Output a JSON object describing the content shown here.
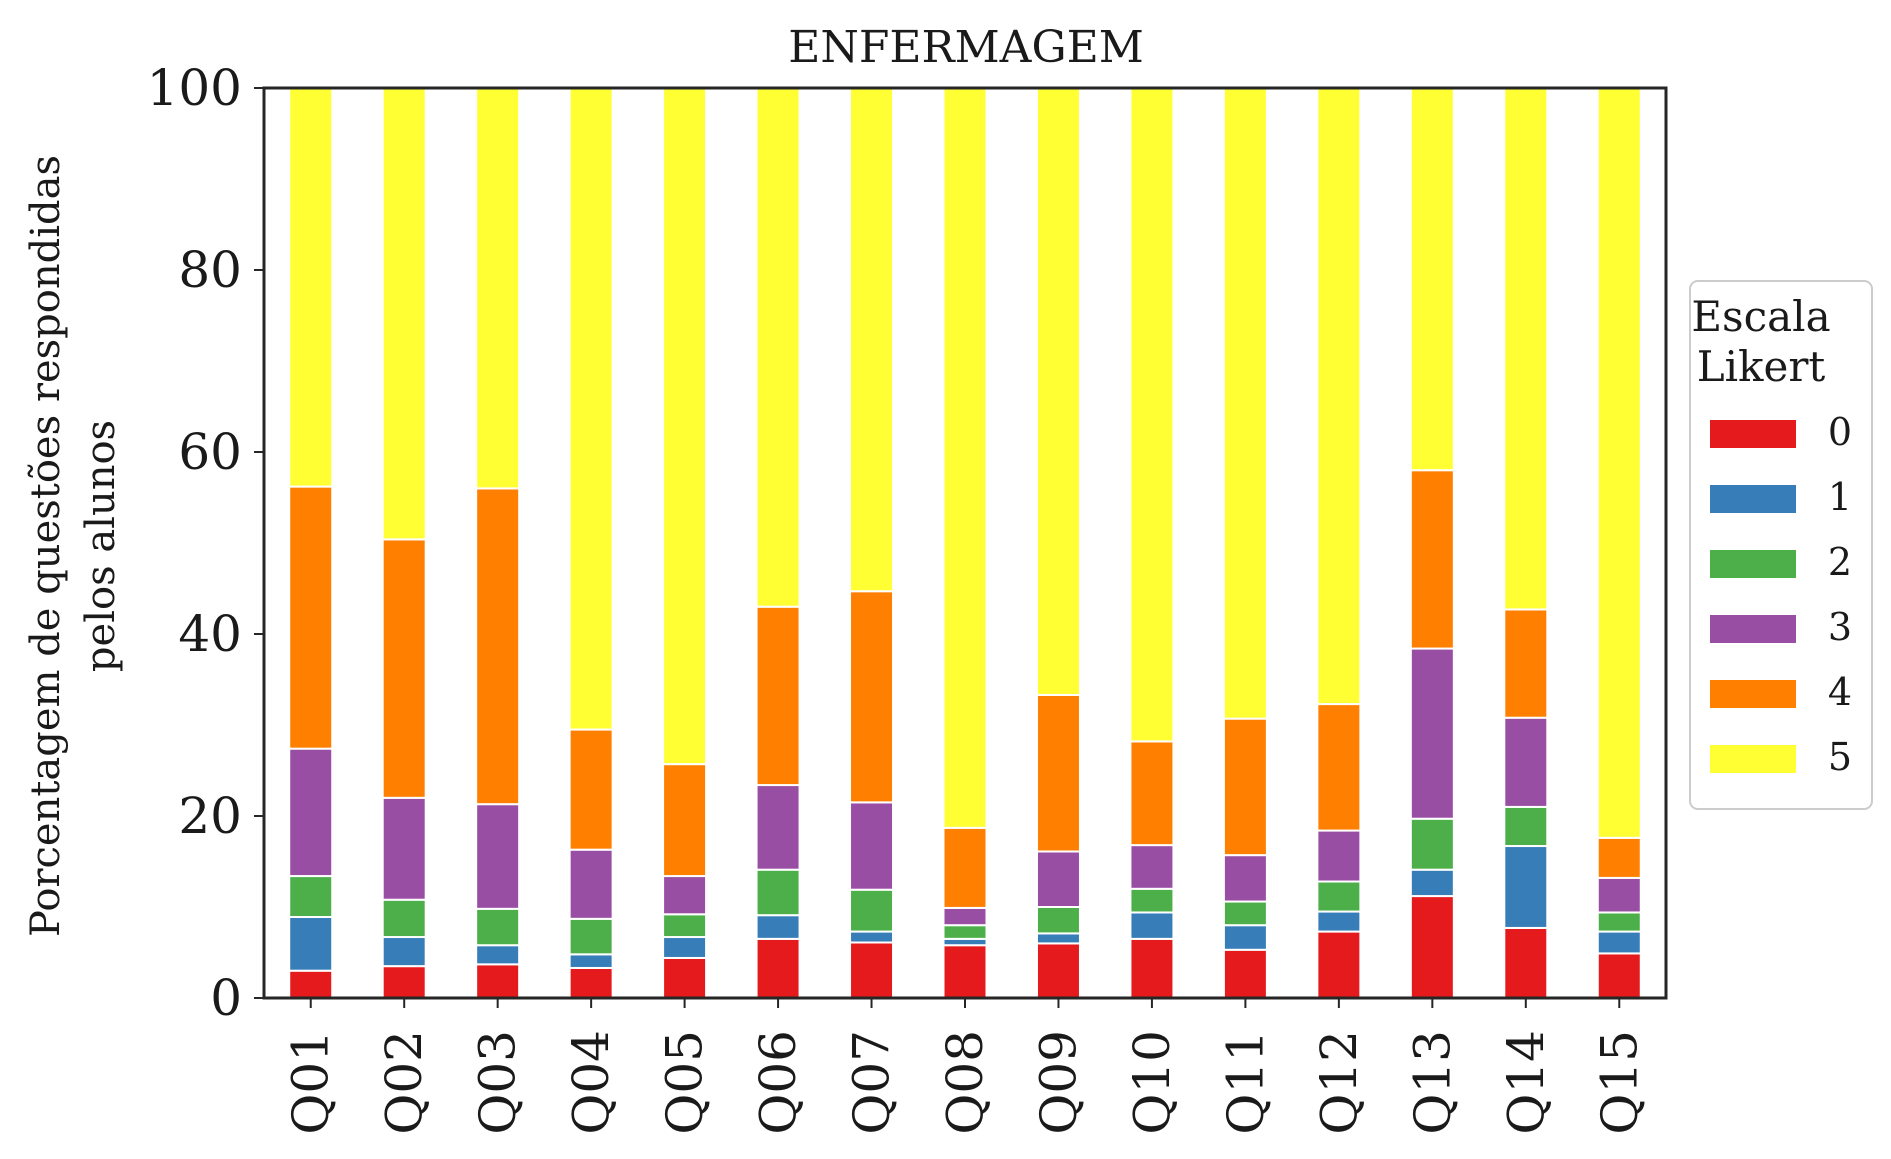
{
  "chart_data": {
    "type": "bar",
    "stacked": true,
    "title": "ENFERMAGEM",
    "ylabel_lines": [
      "Porcentagem de questões respondidas",
      "pelos alunos"
    ],
    "xlabel": "",
    "ylim": [
      0,
      100
    ],
    "yticks": [
      "0",
      "20",
      "40",
      "60",
      "80",
      "100"
    ],
    "grid": false,
    "legend": {
      "title_lines": [
        "Escala",
        "Likert"
      ],
      "placement": "right"
    },
    "categories": [
      "Q01",
      "Q02",
      "Q03",
      "Q04",
      "Q05",
      "Q06",
      "Q07",
      "Q08",
      "Q09",
      "Q10",
      "Q11",
      "Q12",
      "Q13",
      "Q14",
      "Q15"
    ],
    "series": [
      {
        "name": "0",
        "color": "#e41a1c",
        "values": [
          3.0,
          3.5,
          3.7,
          3.3,
          4.4,
          6.5,
          6.1,
          5.8,
          6.0,
          6.5,
          5.3,
          7.3,
          11.2,
          7.7,
          4.9
        ]
      },
      {
        "name": "1",
        "color": "#377eb8",
        "values": [
          5.9,
          3.2,
          2.1,
          1.5,
          2.3,
          2.6,
          1.2,
          0.7,
          1.1,
          2.9,
          2.7,
          2.2,
          2.9,
          9.0,
          2.4
        ]
      },
      {
        "name": "2",
        "color": "#4daf4a",
        "values": [
          4.5,
          4.1,
          4.0,
          3.9,
          2.5,
          5.0,
          4.6,
          1.5,
          2.9,
          2.6,
          2.6,
          3.3,
          5.6,
          4.3,
          2.1
        ]
      },
      {
        "name": "3",
        "color": "#984ea3",
        "values": [
          14.0,
          11.2,
          11.5,
          7.6,
          4.2,
          9.3,
          9.6,
          1.9,
          6.1,
          4.8,
          5.1,
          5.6,
          18.7,
          9.8,
          3.8
        ]
      },
      {
        "name": "4",
        "color": "#ff7f00",
        "values": [
          28.8,
          28.4,
          34.7,
          13.2,
          12.3,
          19.6,
          23.2,
          8.8,
          17.2,
          11.4,
          15.0,
          13.9,
          19.6,
          11.9,
          4.4
        ]
      },
      {
        "name": "5",
        "color": "#ffff33",
        "values": [
          43.8,
          49.6,
          44.0,
          70.5,
          74.3,
          57.0,
          55.3,
          81.3,
          66.7,
          71.8,
          69.3,
          67.7,
          42.0,
          57.3,
          82.4
        ]
      }
    ]
  }
}
